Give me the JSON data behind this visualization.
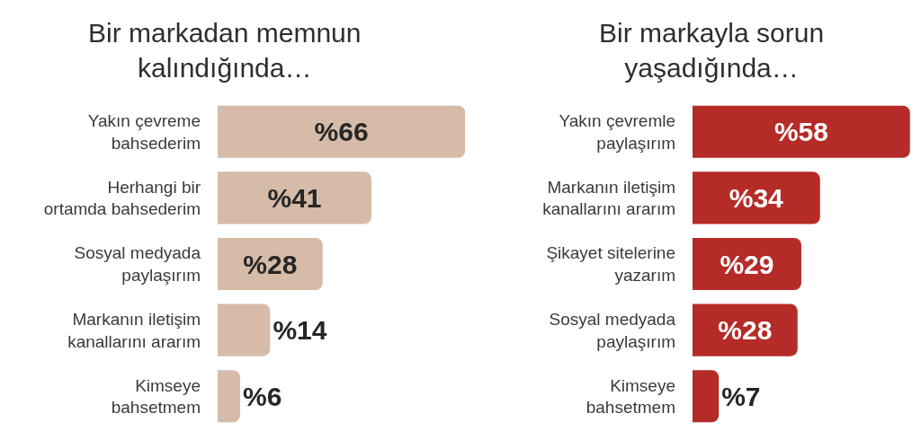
{
  "chart_data": [
    {
      "type": "bar",
      "orientation": "horizontal",
      "title": "Bir markadan memnun kalındığında…",
      "tick_labels": "y",
      "categories": [
        "Yakın çevreme bahsederim",
        "Herhangi bir ortamda bahsederim",
        "Sosyal medyada paylaşırım",
        "Markanın iletişim kanallarını ararım",
        "Kimseye bahsetmem"
      ],
      "values": [
        66,
        41,
        28,
        14,
        6
      ],
      "color": "#d5bba8",
      "value_labels": [
        "%66",
        "%41",
        "%28",
        "%14",
        "%6"
      ]
    },
    {
      "type": "bar",
      "orientation": "horizontal",
      "title": "Bir markayla sorun yaşadığında…",
      "tick_labels": "y",
      "categories": [
        "Yakın çevremle paylaşırım",
        "Markanın iletişim kanallarını ararım",
        "Şikayet sitelerine yazarım",
        "Sosyal medyada paylaşırım",
        "Kimseye bahsetmem"
      ],
      "values": [
        58,
        34,
        29,
        28,
        7
      ],
      "color": "#b52b27",
      "value_labels": [
        "%58",
        "%34",
        "%29",
        "%28",
        "%7"
      ]
    }
  ]
}
